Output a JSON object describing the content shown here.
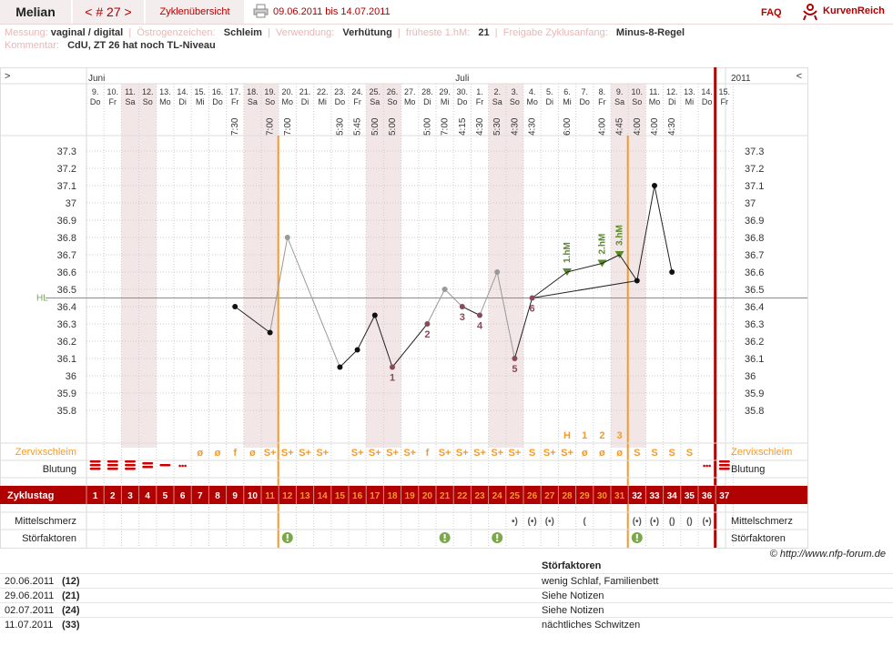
{
  "header": {
    "user_name": "Melian",
    "cycle_label": "< # 27 >",
    "overview_label": "Zyklenübersicht",
    "date_range": "09.06.2011 bis 14.07.2011",
    "faq_label": "FAQ",
    "logo_text": "KurvenReich"
  },
  "info_line1": [
    {
      "label": "Messung:",
      "value": "vaginal / digital"
    },
    {
      "label": "Östrogenzeichen:",
      "value": "Schleim"
    },
    {
      "label": "Verwendung:",
      "value": "Verhütung"
    },
    {
      "label": "früheste 1.hM:",
      "value": "21"
    },
    {
      "label": "Freigabe Zyklusanfang:",
      "value": "Minus-8-Regel"
    }
  ],
  "info_line2": {
    "label": "Kommentar:",
    "value": "CdU, ZT 26 hat noch TL-Niveau"
  },
  "chart_data": {
    "type": "line",
    "title": "",
    "month_labels": {
      "left": "Juni",
      "middle": "Juli",
      "right_year": "2011"
    },
    "nav_left": ">",
    "nav_right": "<",
    "days": [
      {
        "date": "9.",
        "wd": "Do",
        "time": "",
        "weekend": false
      },
      {
        "date": "10.",
        "wd": "Fr",
        "time": "",
        "weekend": false
      },
      {
        "date": "11.",
        "wd": "Sa",
        "time": "",
        "weekend": true
      },
      {
        "date": "12.",
        "wd": "So",
        "time": "",
        "weekend": true
      },
      {
        "date": "13.",
        "wd": "Mo",
        "time": "",
        "weekend": false
      },
      {
        "date": "14.",
        "wd": "Di",
        "time": "",
        "weekend": false
      },
      {
        "date": "15.",
        "wd": "Mi",
        "time": "",
        "weekend": false
      },
      {
        "date": "16.",
        "wd": "Do",
        "time": "",
        "weekend": false
      },
      {
        "date": "17.",
        "wd": "Fr",
        "time": "7:30",
        "weekend": false
      },
      {
        "date": "18.",
        "wd": "Sa",
        "time": "",
        "weekend": true
      },
      {
        "date": "19.",
        "wd": "So",
        "time": "7:00",
        "weekend": true
      },
      {
        "date": "20.",
        "wd": "Mo",
        "time": "7:00",
        "weekend": false
      },
      {
        "date": "21.",
        "wd": "Di",
        "time": "",
        "weekend": false
      },
      {
        "date": "22.",
        "wd": "Mi",
        "time": "",
        "weekend": false
      },
      {
        "date": "23.",
        "wd": "Do",
        "time": "5:30",
        "weekend": false
      },
      {
        "date": "24.",
        "wd": "Fr",
        "time": "5:45",
        "weekend": false
      },
      {
        "date": "25.",
        "wd": "Sa",
        "time": "5:00",
        "weekend": true
      },
      {
        "date": "26.",
        "wd": "So",
        "time": "5:00",
        "weekend": true
      },
      {
        "date": "27.",
        "wd": "Mo",
        "time": "",
        "weekend": false
      },
      {
        "date": "28.",
        "wd": "Di",
        "time": "5:00",
        "weekend": false
      },
      {
        "date": "29.",
        "wd": "Mi",
        "time": "7:00",
        "weekend": false
      },
      {
        "date": "30.",
        "wd": "Do",
        "time": "4:15",
        "weekend": false
      },
      {
        "date": "1.",
        "wd": "Fr",
        "time": "4:30",
        "weekend": false
      },
      {
        "date": "2.",
        "wd": "Sa",
        "time": "5:30",
        "weekend": true
      },
      {
        "date": "3.",
        "wd": "So",
        "time": "4:30",
        "weekend": true
      },
      {
        "date": "4.",
        "wd": "Mo",
        "time": "4:30",
        "weekend": false
      },
      {
        "date": "5.",
        "wd": "Di",
        "time": "",
        "weekend": false
      },
      {
        "date": "6.",
        "wd": "Mi",
        "time": "6:00",
        "weekend": false
      },
      {
        "date": "7.",
        "wd": "Do",
        "time": "",
        "weekend": false
      },
      {
        "date": "8.",
        "wd": "Fr",
        "time": "4:00",
        "weekend": false
      },
      {
        "date": "9.",
        "wd": "Sa",
        "time": "4:45",
        "weekend": true
      },
      {
        "date": "10.",
        "wd": "So",
        "time": "4:00",
        "weekend": true
      },
      {
        "date": "11.",
        "wd": "Mo",
        "time": "4:00",
        "weekend": false
      },
      {
        "date": "12.",
        "wd": "Di",
        "time": "4:30",
        "weekend": false
      },
      {
        "date": "13.",
        "wd": "Mi",
        "time": "",
        "weekend": false
      },
      {
        "date": "14.",
        "wd": "Do",
        "time": "",
        "weekend": false
      },
      {
        "date": "15.",
        "wd": "Fr",
        "time": "",
        "weekend": false
      }
    ],
    "y_ticks": [
      "37.3",
      "37.2",
      "37.1",
      "37",
      "36.9",
      "36.8",
      "36.7",
      "36.6",
      "36.5",
      "36.4",
      "36.3",
      "36.2",
      "36.1",
      "36",
      "35.9",
      "35.8"
    ],
    "ylim": [
      35.8,
      37.3
    ],
    "hl_label": "HL",
    "hl_value": 36.45,
    "temperatures": [
      null,
      null,
      null,
      null,
      null,
      null,
      null,
      null,
      36.4,
      null,
      36.25,
      36.8,
      null,
      null,
      36.05,
      36.15,
      36.35,
      36.05,
      null,
      36.3,
      36.5,
      36.4,
      36.35,
      36.6,
      36.1,
      36.45,
      null,
      null,
      null,
      null,
      null,
      36.55,
      37.1,
      36.6,
      null,
      null,
      null
    ],
    "excluded_days": [
      11,
      20,
      23
    ],
    "low_labels": [
      {
        "day": 17,
        "text": "1"
      },
      {
        "day": 19,
        "text": "2"
      },
      {
        "day": 21,
        "text": "3"
      },
      {
        "day": 22,
        "text": "4"
      },
      {
        "day": 24,
        "text": "5"
      },
      {
        "day": 25,
        "text": "6"
      }
    ],
    "high_points": [
      {
        "day": 27,
        "value": 36.6,
        "label": "1.hM"
      },
      {
        "day": 29,
        "value": 36.65,
        "label": "2.hM"
      },
      {
        "day": 30,
        "value": 36.7,
        "label": "3.hM"
      }
    ],
    "orange_lines_days": [
      10,
      30
    ],
    "red_line_day": 36,
    "peak_marks": [
      {
        "day": 27,
        "text": "H"
      },
      {
        "day": 28,
        "text": "1"
      },
      {
        "day": 29,
        "text": "2"
      },
      {
        "day": 30,
        "text": "3"
      }
    ],
    "row_labels": {
      "zervix": "Zervixschleim",
      "blutung": "Blutung",
      "zyklustag": "Zyklustag",
      "mittelschmerz": "Mittelschmerz",
      "stoerfaktoren": "Störfaktoren"
    },
    "zervix": [
      "",
      "",
      "",
      "",
      "",
      "",
      "ø",
      "ø",
      "f",
      "ø",
      "S+",
      "S+",
      "S+",
      "S+",
      "",
      "S+",
      "S+",
      "S+",
      "S+",
      "f",
      "S+",
      "S+",
      "S+",
      "S+",
      "S+",
      "S",
      "S+",
      "S+",
      "ø",
      "ø",
      "ø",
      "S",
      "S",
      "S",
      "S",
      "",
      ""
    ],
    "bleeding": [
      3,
      3,
      3,
      2,
      1,
      0.5,
      0,
      0,
      0,
      0,
      0,
      0,
      0,
      0,
      0,
      0,
      0,
      0,
      0,
      0,
      0,
      0,
      0,
      0,
      0,
      0,
      0,
      0,
      0,
      0,
      0,
      0,
      0,
      0,
      0,
      0.5,
      3
    ],
    "cycle_days": [
      "1",
      "2",
      "3",
      "4",
      "5",
      "6",
      "7",
      "8",
      "9",
      "10",
      "11",
      "12",
      "13",
      "14",
      "15",
      "16",
      "17",
      "18",
      "19",
      "20",
      "21",
      "22",
      "23",
      "24",
      "25",
      "26",
      "27",
      "28",
      "29",
      "30",
      "31",
      "32",
      "33",
      "34",
      "35",
      "36",
      "37"
    ],
    "pain": [
      "",
      "",
      "",
      "",
      "",
      "",
      "",
      "",
      "",
      "",
      "",
      "",
      "",
      "",
      "",
      "",
      "",
      "",
      "",
      "",
      "",
      "",
      "",
      "",
      "•)",
      "(•)",
      "(•)",
      "",
      "(",
      "",
      "",
      "(•)",
      "(•)",
      "()",
      "()",
      "(•)",
      ""
    ],
    "disturb_days": [
      11,
      20,
      23,
      31
    ]
  },
  "credit": "© http://www.nfp-forum.de",
  "notes": {
    "header": "Störfaktoren",
    "rows": [
      {
        "date": "20.06.2011",
        "day": "(12)",
        "text": "wenig Schlaf, Familienbett"
      },
      {
        "date": "29.06.2011",
        "day": "(21)",
        "text": "Siehe Notizen"
      },
      {
        "date": "02.07.2011",
        "day": "(24)",
        "text": "Siehe Notizen"
      },
      {
        "date": "11.07.2011",
        "day": "(33)",
        "text": "nächtliches Schwitzen"
      }
    ]
  },
  "colors": {
    "accent": "#b00000",
    "orange": "#f59a28",
    "hl_line": "#7aa05a",
    "green_mark": "#5a8a2a",
    "low_label": "#8a4a5a",
    "weekend": "#f3e6e6"
  }
}
